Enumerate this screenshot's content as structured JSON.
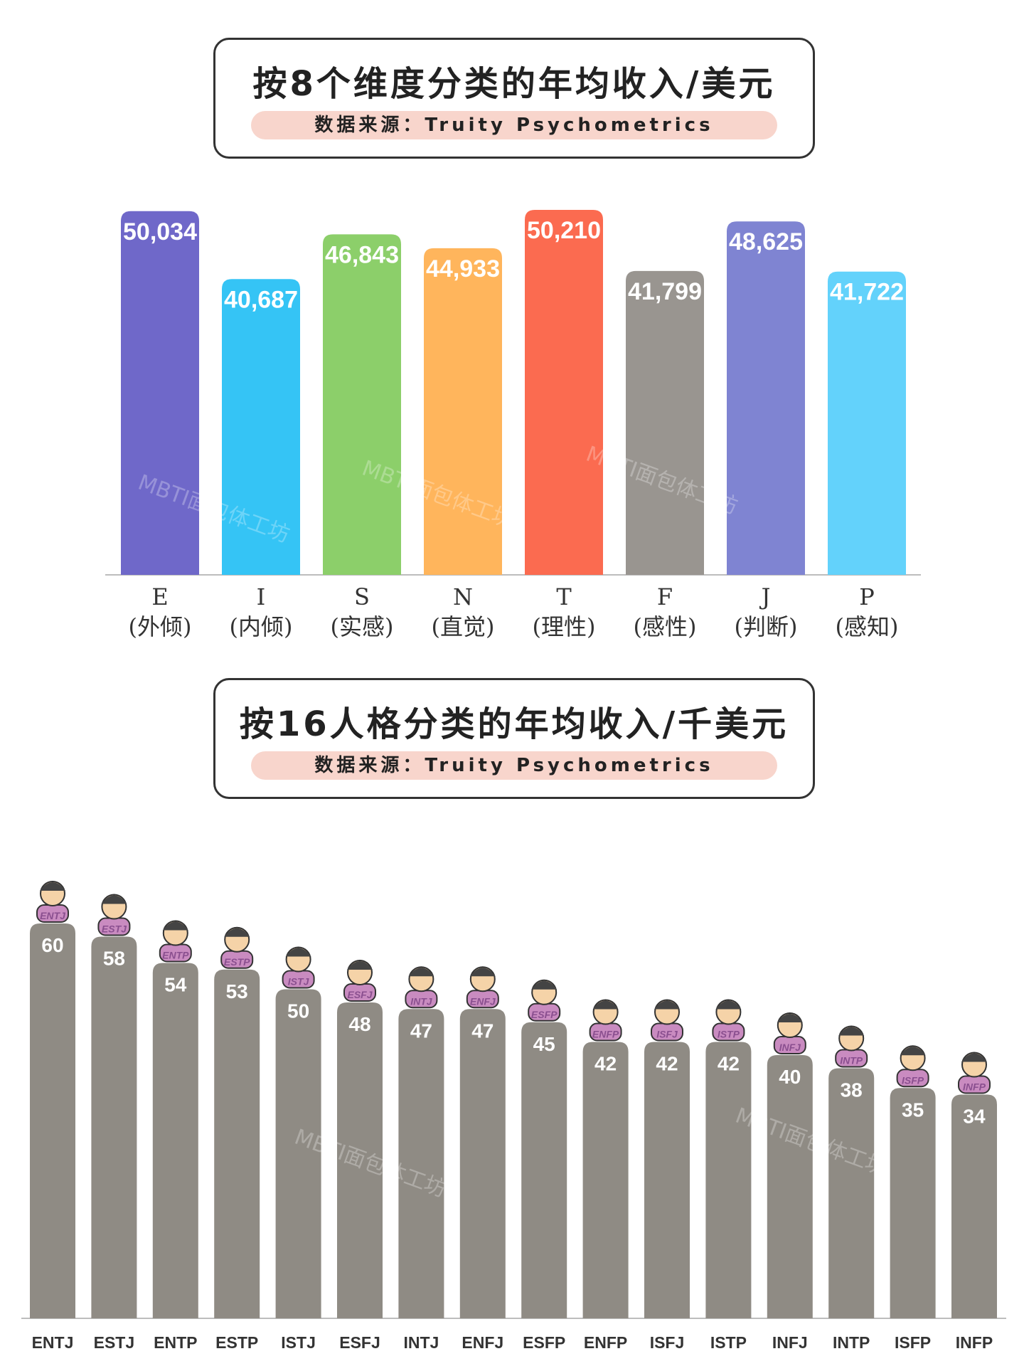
{
  "chart1_header": {
    "title": "按8个维度分类的年均收入/美元",
    "source": "数据来源：Truity Psychometrics"
  },
  "chart2_header": {
    "title": "按16人格分类的年均收入/千美元",
    "source": "数据来源：Truity Psychometrics"
  },
  "watermark": "MBTI面包体工坊",
  "chart_data": [
    {
      "type": "bar",
      "title": "按8个维度分类的年均收入/美元",
      "categories": [
        "E",
        "I",
        "S",
        "N",
        "T",
        "F",
        "J",
        "P"
      ],
      "category_sublabels": [
        "(外倾)",
        "(内倾)",
        "(实感)",
        "(直觉)",
        "(理性)",
        "(感性)",
        "(判断)",
        "(感知)"
      ],
      "values": [
        50034,
        40687,
        46843,
        44933,
        50210,
        41799,
        48625,
        41722
      ],
      "value_labels": [
        "50,034",
        "40,687",
        "46,843",
        "44,933",
        "50,210",
        "41,799",
        "48,625",
        "41,722"
      ],
      "colors": [
        "#6f68c9",
        "#35c4f5",
        "#8ccf6a",
        "#ffb55c",
        "#fb6b50",
        "#999590",
        "#7f84d2",
        "#63d2fb"
      ],
      "ylim": [
        0,
        50210
      ],
      "grid": false
    },
    {
      "type": "bar",
      "title": "按16人格分类的年均收入/千美元",
      "categories": [
        "ENTJ",
        "ESTJ",
        "ENTP",
        "ESTP",
        "ISTJ",
        "ESFJ",
        "INTJ",
        "ENFJ",
        "ESFP",
        "ENFP",
        "ISFJ",
        "ISTP",
        "INFJ",
        "INTP",
        "ISFP",
        "INFP"
      ],
      "values": [
        60,
        58,
        54,
        53,
        50,
        48,
        47,
        47,
        45,
        42,
        42,
        42,
        40,
        38,
        35,
        34
      ],
      "color": "#8f8b84",
      "ylim": [
        0,
        60
      ],
      "grid": false
    }
  ]
}
